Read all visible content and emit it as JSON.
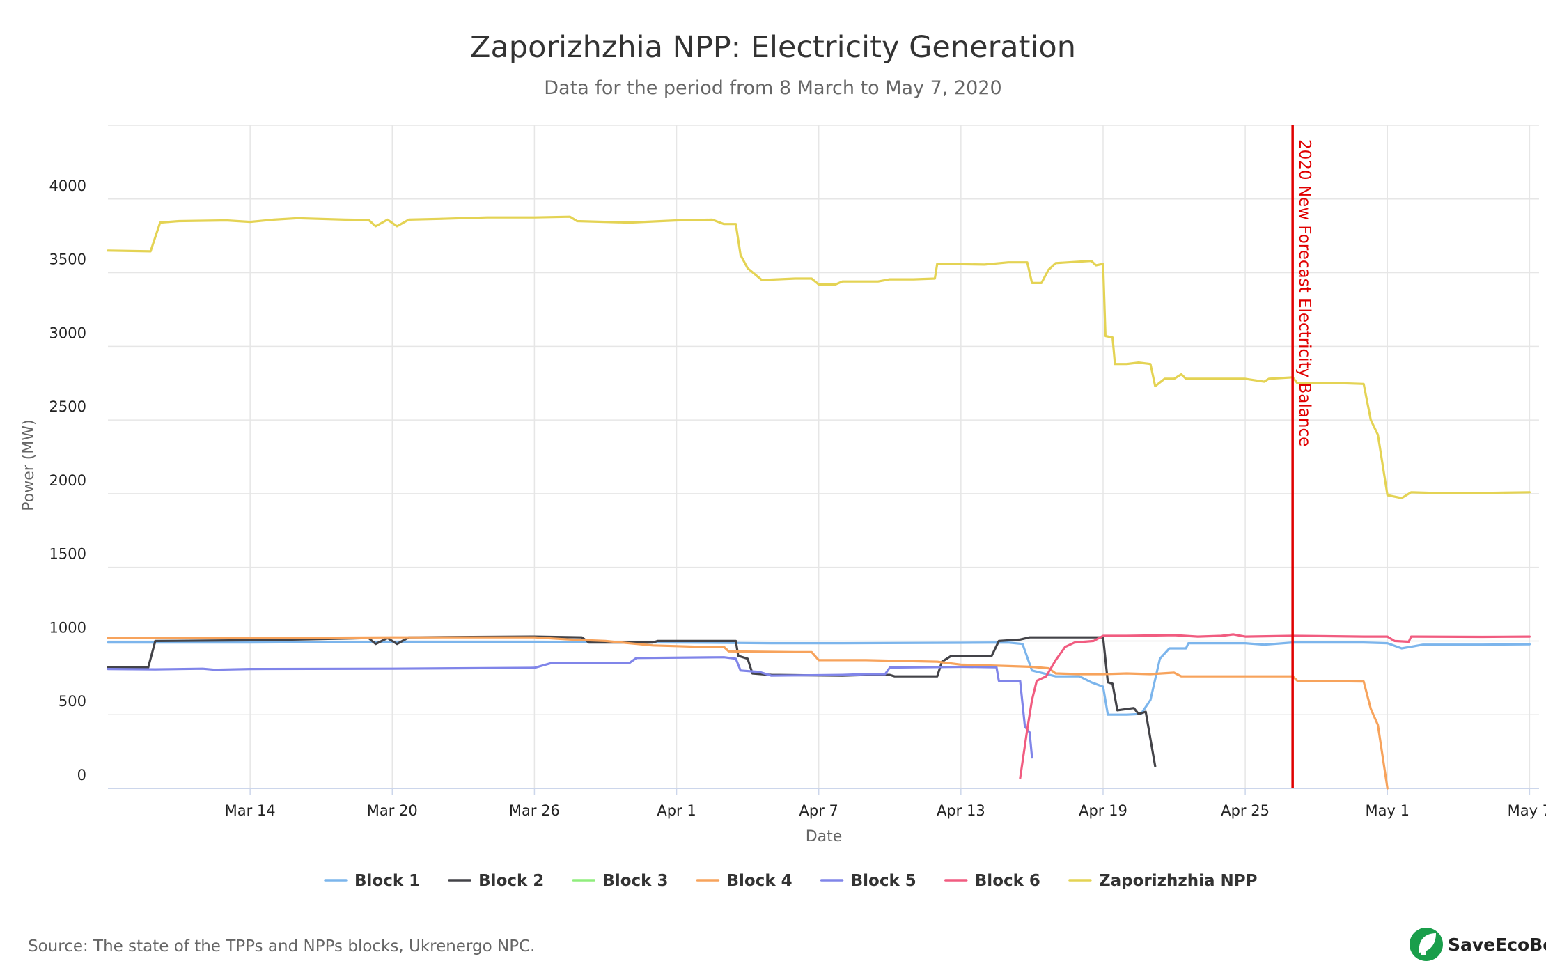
{
  "header": {
    "title": "Zaporizhzhia NPP: Electricity Generation",
    "subtitle": "Data for the period from 8 March to May 7, 2020"
  },
  "footer": {
    "source": "Source: The state of the TPPs and NPPs blocks, Ukrenergo NPC.",
    "brand": "SaveEcoBot",
    "brand_icon": "leaf-plug-icon",
    "brand_color": "#1a9e4b"
  },
  "chart_data": {
    "type": "line",
    "xlabel": "Date",
    "ylabel": "Power (MW)",
    "xlim": [
      "2020-03-08",
      "2020-05-07"
    ],
    "ylim": [
      0,
      4500
    ],
    "x_ticks": [
      {
        "date": "2020-03-14",
        "label": "Mar 14"
      },
      {
        "date": "2020-03-20",
        "label": "Mar 20"
      },
      {
        "date": "2020-03-26",
        "label": "Mar 26"
      },
      {
        "date": "2020-04-01",
        "label": "Apr 1"
      },
      {
        "date": "2020-04-07",
        "label": "Apr 7"
      },
      {
        "date": "2020-04-13",
        "label": "Apr 13"
      },
      {
        "date": "2020-04-19",
        "label": "Apr 19"
      },
      {
        "date": "2020-04-25",
        "label": "Apr 25"
      },
      {
        "date": "2020-05-01",
        "label": "May 1"
      },
      {
        "date": "2020-05-07",
        "label": "May 7"
      }
    ],
    "y_ticks": [
      0,
      500,
      1000,
      1500,
      2000,
      2500,
      3000,
      3500,
      4000
    ],
    "grid": true,
    "legend_position": "bottom",
    "annotations": [
      {
        "date": "2020-04-27",
        "label": "2020 New Forecast Electricity Balance",
        "color": "#e00000"
      }
    ],
    "series": [
      {
        "name": "Block 1",
        "color": "#7cb5ec",
        "points": [
          [
            "2020-03-08",
            990
          ],
          [
            "2020-03-14",
            990
          ],
          [
            "2020-03-20",
            995
          ],
          [
            "2020-03-26",
            995
          ],
          [
            "2020-04-01",
            990
          ],
          [
            "2020-04-05",
            985
          ],
          [
            "2020-04-08",
            985
          ],
          [
            "2020-04-13",
            988
          ],
          [
            "2020-04-15",
            990
          ],
          [
            "2020-04-15.6",
            980
          ],
          [
            "2020-04-16",
            800
          ],
          [
            "2020-04-17",
            760
          ],
          [
            "2020-04-18",
            760
          ],
          [
            "2020-04-18.5",
            720
          ],
          [
            "2020-04-19",
            690
          ],
          [
            "2020-04-19.2",
            500
          ],
          [
            "2020-04-20",
            500
          ],
          [
            "2020-04-20.6",
            505
          ],
          [
            "2020-04-21",
            600
          ],
          [
            "2020-04-21.4",
            880
          ],
          [
            "2020-04-21.8",
            950
          ],
          [
            "2020-04-22.5",
            950
          ],
          [
            "2020-04-22.6",
            985
          ],
          [
            "2020-04-25",
            985
          ],
          [
            "2020-04-25.8",
            975
          ],
          [
            "2020-04-27",
            990
          ],
          [
            "2020-04-30",
            990
          ],
          [
            "2020-05-01",
            985
          ],
          [
            "2020-05-01.6",
            950
          ],
          [
            "2020-05-02.5",
            975
          ],
          [
            "2020-05-05",
            975
          ],
          [
            "2020-05-07",
            978
          ]
        ]
      },
      {
        "name": "Block 2",
        "color": "#434348",
        "points": [
          [
            "2020-03-08",
            820
          ],
          [
            "2020-03-09.7",
            820
          ],
          [
            "2020-03-10",
            1000
          ],
          [
            "2020-03-14",
            1005
          ],
          [
            "2020-03-16",
            1010
          ],
          [
            "2020-03-19",
            1020
          ],
          [
            "2020-03-19.3",
            980
          ],
          [
            "2020-03-19.8",
            1020
          ],
          [
            "2020-03-20.2",
            980
          ],
          [
            "2020-03-20.7",
            1025
          ],
          [
            "2020-03-26",
            1030
          ],
          [
            "2020-03-28",
            1025
          ],
          [
            "2020-03-28.3",
            990
          ],
          [
            "2020-03-31",
            990
          ],
          [
            "2020-03-31.2",
            1000
          ],
          [
            "2020-04-03.5",
            1000
          ],
          [
            "2020-04-03.6",
            900
          ],
          [
            "2020-04-04",
            880
          ],
          [
            "2020-04-04.2",
            780
          ],
          [
            "2020-04-05",
            770
          ],
          [
            "2020-04-08",
            765
          ],
          [
            "2020-04-09",
            770
          ],
          [
            "2020-04-10",
            770
          ],
          [
            "2020-04-10.2",
            760
          ],
          [
            "2020-04-12",
            760
          ],
          [
            "2020-04-12.2",
            860
          ],
          [
            "2020-04-12.6",
            900
          ],
          [
            "2020-04-14.3",
            900
          ],
          [
            "2020-04-14.6",
            1000
          ],
          [
            "2020-04-15.5",
            1010
          ],
          [
            "2020-04-15.9",
            1025
          ],
          [
            "2020-04-19",
            1025
          ],
          [
            "2020-04-19.2",
            720
          ],
          [
            "2020-04-19.4",
            710
          ],
          [
            "2020-04-19.6",
            530
          ],
          [
            "2020-04-20.3",
            545
          ],
          [
            "2020-04-20.5",
            505
          ],
          [
            "2020-04-20.8",
            520
          ],
          [
            "2020-04-21.2",
            150
          ]
        ]
      },
      {
        "name": "Block 3",
        "color": "#90ed7d",
        "points": []
      },
      {
        "name": "Block 4",
        "color": "#f7a35c",
        "points": [
          [
            "2020-03-08",
            1020
          ],
          [
            "2020-03-14",
            1020
          ],
          [
            "2020-03-20",
            1025
          ],
          [
            "2020-03-26",
            1025
          ],
          [
            "2020-03-27.5",
            1010
          ],
          [
            "2020-03-29",
            1000
          ],
          [
            "2020-03-31",
            970
          ],
          [
            "2020-04-01",
            965
          ],
          [
            "2020-04-02",
            960
          ],
          [
            "2020-04-03",
            960
          ],
          [
            "2020-04-03.2",
            930
          ],
          [
            "2020-04-06",
            925
          ],
          [
            "2020-04-06.7",
            925
          ],
          [
            "2020-04-07",
            870
          ],
          [
            "2020-04-09",
            870
          ],
          [
            "2020-04-12",
            860
          ],
          [
            "2020-04-13",
            840
          ],
          [
            "2020-04-15",
            830
          ],
          [
            "2020-04-16",
            825
          ],
          [
            "2020-04-16.7",
            815
          ],
          [
            "2020-04-17",
            780
          ],
          [
            "2020-04-18",
            775
          ],
          [
            "2020-04-19",
            775
          ],
          [
            "2020-04-20",
            780
          ],
          [
            "2020-04-21",
            775
          ],
          [
            "2020-04-22",
            785
          ],
          [
            "2020-04-22.3",
            760
          ],
          [
            "2020-04-25",
            760
          ],
          [
            "2020-04-27",
            760
          ],
          [
            "2020-04-27.2",
            730
          ],
          [
            "2020-04-30",
            725
          ],
          [
            "2020-04-30.3",
            540
          ],
          [
            "2020-04-30.6",
            430
          ],
          [
            "2020-05-01",
            0
          ]
        ]
      },
      {
        "name": "Block 5",
        "color": "#8085e9",
        "points": [
          [
            "2020-03-08",
            810
          ],
          [
            "2020-03-10",
            808
          ],
          [
            "2020-03-12",
            812
          ],
          [
            "2020-03-12.5",
            805
          ],
          [
            "2020-03-14",
            810
          ],
          [
            "2020-03-20",
            812
          ],
          [
            "2020-03-26",
            818
          ],
          [
            "2020-03-26.7",
            850
          ],
          [
            "2020-03-30",
            850
          ],
          [
            "2020-03-30.3",
            885
          ],
          [
            "2020-04-03",
            890
          ],
          [
            "2020-04-03.5",
            880
          ],
          [
            "2020-04-03.7",
            800
          ],
          [
            "2020-04-04.5",
            790
          ],
          [
            "2020-04-05",
            765
          ],
          [
            "2020-04-08",
            770
          ],
          [
            "2020-04-09",
            775
          ],
          [
            "2020-04-09.8",
            775
          ],
          [
            "2020-04-10",
            820
          ],
          [
            "2020-04-13",
            825
          ],
          [
            "2020-04-14.5",
            822
          ],
          [
            "2020-04-14.6",
            730
          ],
          [
            "2020-04-15.5",
            728
          ],
          [
            "2020-04-15.7",
            420
          ],
          [
            "2020-04-15.9",
            380
          ],
          [
            "2020-04-16",
            210
          ]
        ]
      },
      {
        "name": "Block 6",
        "color": "#f15c80",
        "points": [
          [
            "2020-04-15.5",
            70
          ],
          [
            "2020-04-15.8",
            400
          ],
          [
            "2020-04-16",
            600
          ],
          [
            "2020-04-16.2",
            730
          ],
          [
            "2020-04-16.6",
            760
          ],
          [
            "2020-04-17",
            870
          ],
          [
            "2020-04-17.4",
            960
          ],
          [
            "2020-04-17.8",
            990
          ],
          [
            "2020-04-18.6",
            1000
          ],
          [
            "2020-04-19",
            1035
          ],
          [
            "2020-04-20",
            1035
          ],
          [
            "2020-04-22",
            1040
          ],
          [
            "2020-04-23",
            1030
          ],
          [
            "2020-04-24",
            1035
          ],
          [
            "2020-04-24.5",
            1045
          ],
          [
            "2020-04-25",
            1030
          ],
          [
            "2020-04-27",
            1035
          ],
          [
            "2020-04-30",
            1030
          ],
          [
            "2020-05-01",
            1030
          ],
          [
            "2020-05-01.3",
            1000
          ],
          [
            "2020-05-01.9",
            995
          ],
          [
            "2020-05-02",
            1030
          ],
          [
            "2020-05-05",
            1028
          ],
          [
            "2020-05-07",
            1030
          ]
        ]
      },
      {
        "name": "Zaporizhzhia NPP",
        "color": "#e4d354",
        "points": [
          [
            "2020-03-08",
            3650
          ],
          [
            "2020-03-09.8",
            3645
          ],
          [
            "2020-03-10.2",
            3840
          ],
          [
            "2020-03-11",
            3850
          ],
          [
            "2020-03-13",
            3855
          ],
          [
            "2020-03-14",
            3845
          ],
          [
            "2020-03-15",
            3860
          ],
          [
            "2020-03-16",
            3870
          ],
          [
            "2020-03-18",
            3860
          ],
          [
            "2020-03-19",
            3858
          ],
          [
            "2020-03-19.3",
            3815
          ],
          [
            "2020-03-19.8",
            3860
          ],
          [
            "2020-03-20.2",
            3815
          ],
          [
            "2020-03-20.7",
            3860
          ],
          [
            "2020-03-22",
            3865
          ],
          [
            "2020-03-24",
            3875
          ],
          [
            "2020-03-26",
            3875
          ],
          [
            "2020-03-27.5",
            3880
          ],
          [
            "2020-03-27.8",
            3850
          ],
          [
            "2020-03-30",
            3840
          ],
          [
            "2020-04-01",
            3855
          ],
          [
            "2020-04-02.5",
            3860
          ],
          [
            "2020-04-03",
            3830
          ],
          [
            "2020-04-03.5",
            3830
          ],
          [
            "2020-04-03.7",
            3620
          ],
          [
            "2020-04-04",
            3530
          ],
          [
            "2020-04-04.6",
            3450
          ],
          [
            "2020-04-06",
            3460
          ],
          [
            "2020-04-06.7",
            3460
          ],
          [
            "2020-04-07",
            3420
          ],
          [
            "2020-04-07.7",
            3420
          ],
          [
            "2020-04-08",
            3440
          ],
          [
            "2020-04-09.5",
            3440
          ],
          [
            "2020-04-10",
            3455
          ],
          [
            "2020-04-11",
            3455
          ],
          [
            "2020-04-11.9",
            3460
          ],
          [
            "2020-04-12",
            3560
          ],
          [
            "2020-04-14",
            3555
          ],
          [
            "2020-04-15",
            3570
          ],
          [
            "2020-04-15.8",
            3570
          ],
          [
            "2020-04-16",
            3430
          ],
          [
            "2020-04-16.4",
            3430
          ],
          [
            "2020-04-16.7",
            3520
          ],
          [
            "2020-04-17",
            3565
          ],
          [
            "2020-04-18",
            3575
          ],
          [
            "2020-04-18.5",
            3580
          ],
          [
            "2020-04-18.7",
            3550
          ],
          [
            "2020-04-19",
            3560
          ],
          [
            "2020-04-19.1",
            3070
          ],
          [
            "2020-04-19.4",
            3060
          ],
          [
            "2020-04-19.5",
            2880
          ],
          [
            "2020-04-20",
            2880
          ],
          [
            "2020-04-20.5",
            2890
          ],
          [
            "2020-04-21",
            2880
          ],
          [
            "2020-04-21.2",
            2730
          ],
          [
            "2020-04-21.6",
            2780
          ],
          [
            "2020-04-22",
            2780
          ],
          [
            "2020-04-22.3",
            2810
          ],
          [
            "2020-04-22.5",
            2780
          ],
          [
            "2020-04-25",
            2780
          ],
          [
            "2020-04-25.8",
            2760
          ],
          [
            "2020-04-26",
            2780
          ],
          [
            "2020-04-27",
            2790
          ],
          [
            "2020-04-27.2",
            2750
          ],
          [
            "2020-04-29",
            2750
          ],
          [
            "2020-04-30",
            2745
          ],
          [
            "2020-04-30.3",
            2500
          ],
          [
            "2020-04-30.6",
            2400
          ],
          [
            "2020-04-31",
            1990
          ],
          [
            "2020-05-01.6",
            1970
          ],
          [
            "2020-05-02",
            2010
          ],
          [
            "2020-05-03",
            2005
          ],
          [
            "2020-05-05",
            2005
          ],
          [
            "2020-05-07",
            2010
          ]
        ]
      }
    ]
  }
}
